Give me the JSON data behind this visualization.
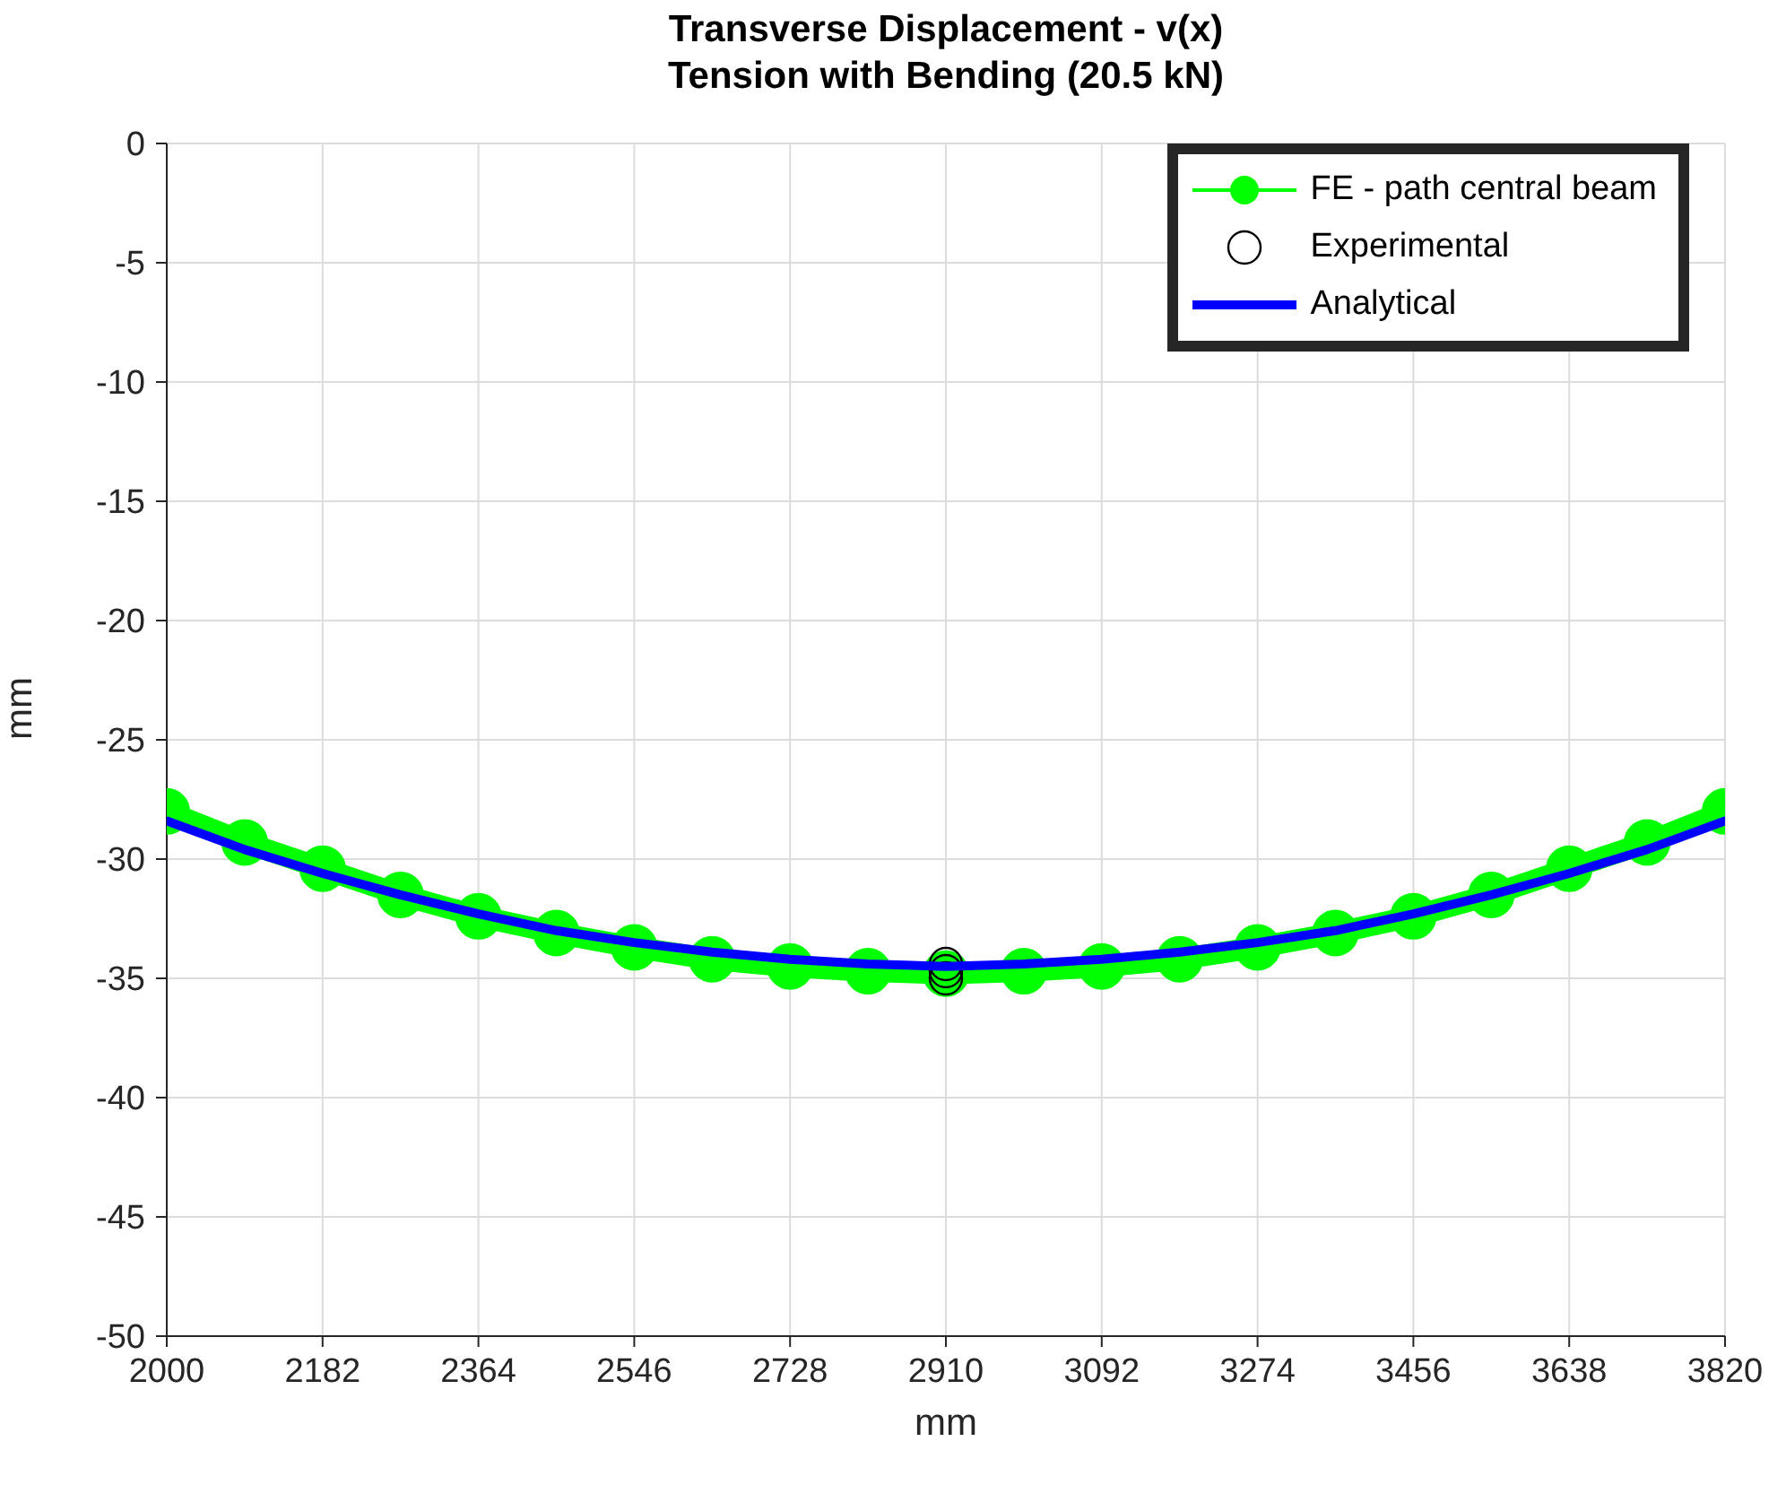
{
  "chart_data": {
    "type": "line",
    "title": "Transverse Displacement - v(x)\nTension with Bending (20.5 kN)",
    "xlabel": "mm",
    "ylabel": "mm",
    "xlim": [
      2000,
      3820
    ],
    "xticks": [
      2000,
      2182,
      2364,
      2546,
      2728,
      2910,
      3092,
      3274,
      3456,
      3638,
      3820
    ],
    "ylim": [
      -50,
      0
    ],
    "yticks": [
      0,
      -5,
      -10,
      -15,
      -20,
      -25,
      -30,
      -35,
      -40,
      -45,
      -50
    ],
    "grid": true,
    "legend": "top right",
    "series": [
      {
        "name": "FE - path central beam",
        "color": "#00ff00",
        "marker": "circle",
        "x": [
          2000,
          2091,
          2182,
          2273,
          2364,
          2455,
          2546,
          2637,
          2728,
          2819,
          2910,
          3001,
          3092,
          3183,
          3274,
          3365,
          3456,
          3547,
          3638,
          3729,
          3820
        ],
        "values": [
          -28,
          -29.3,
          -30.4,
          -31.5,
          -32.4,
          -33.1,
          -33.7,
          -34.2,
          -34.5,
          -34.7,
          -34.8,
          -34.7,
          -34.5,
          -34.2,
          -33.7,
          -33.1,
          -32.4,
          -31.5,
          -30.4,
          -29.3,
          -28
        ]
      },
      {
        "name": "Experimental",
        "type": "scatter",
        "color": "#000000",
        "marker": "circle",
        "x": [
          2910,
          2910,
          2910
        ],
        "values": [
          -34.4,
          -34.7,
          -35.0
        ]
      },
      {
        "name": "Analytical",
        "color": "#0000ff",
        "marker": "none",
        "x": [
          2000,
          2091,
          2182,
          2273,
          2364,
          2455,
          2546,
          2637,
          2728,
          2819,
          2910,
          3001,
          3092,
          3183,
          3274,
          3365,
          3456,
          3547,
          3638,
          3729,
          3820
        ],
        "values": [
          -28.4,
          -29.6,
          -30.6,
          -31.5,
          -32.3,
          -33.0,
          -33.5,
          -33.9,
          -34.2,
          -34.4,
          -34.5,
          -34.4,
          -34.2,
          -33.9,
          -33.5,
          -33.0,
          -32.3,
          -31.5,
          -30.6,
          -29.6,
          -28.4
        ]
      }
    ]
  }
}
